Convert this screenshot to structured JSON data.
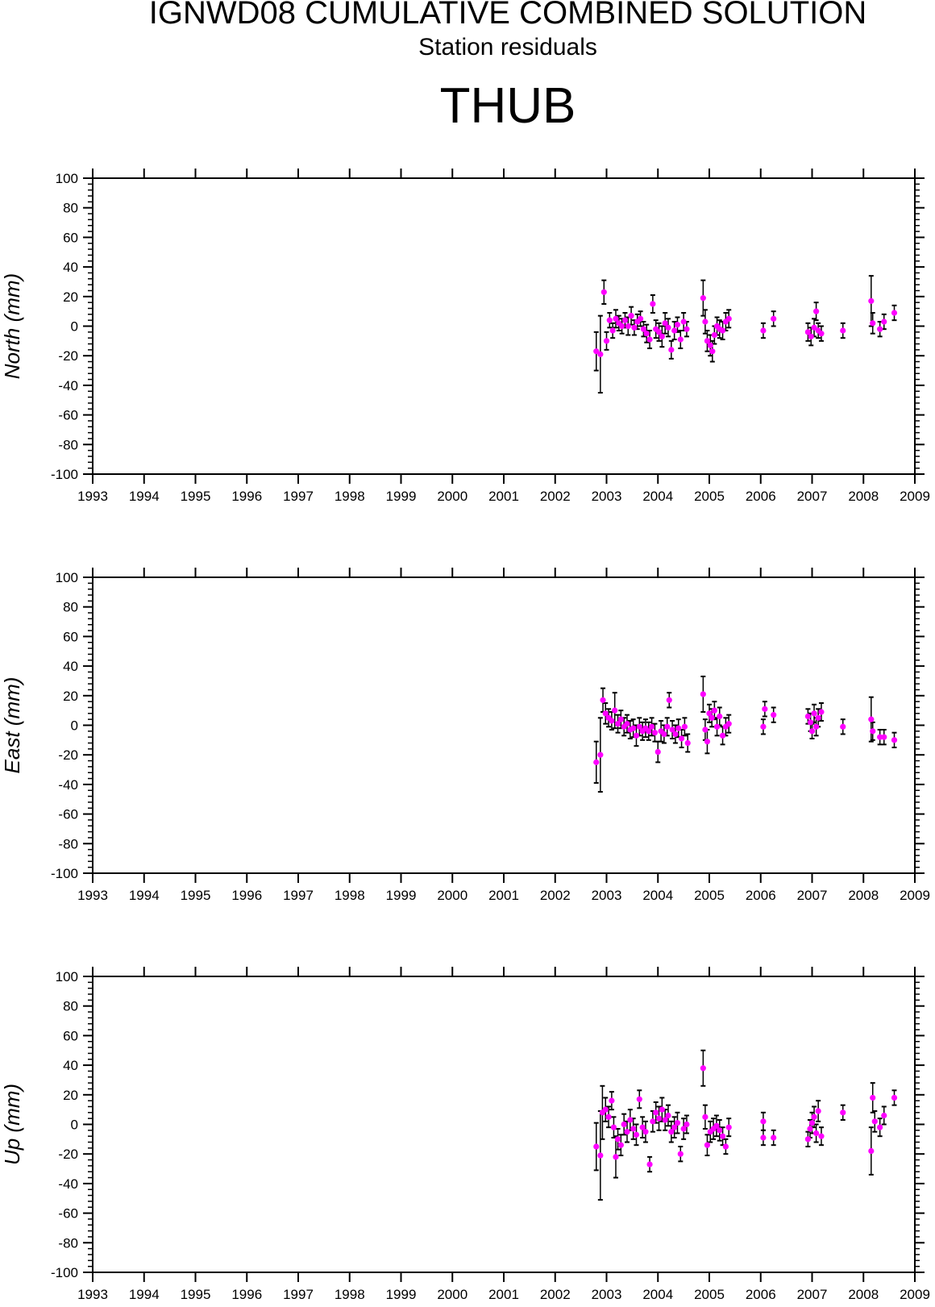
{
  "header": {
    "title": "IGNWD08 CUMULATIVE COMBINED SOLUTION",
    "subtitle": "Station residuals",
    "station": "THUB"
  },
  "colors": {
    "point": "#ff00ff",
    "errorbar": "#000000",
    "axis": "#000000"
  },
  "chart_data": [
    {
      "type": "scatter",
      "ylabel": "North (mm)",
      "xlim": [
        1993,
        2009
      ],
      "ylim": [
        -100,
        100
      ],
      "xticks": [
        "1993",
        "1994",
        "1995",
        "1996",
        "1997",
        "1998",
        "1999",
        "2000",
        "2001",
        "2002",
        "2003",
        "2004",
        "2005",
        "2006",
        "2007",
        "2008",
        "2009"
      ],
      "yticks": [
        "100",
        "80",
        "60",
        "40",
        "20",
        "0",
        "-20",
        "-40",
        "-60",
        "-80",
        "-100"
      ],
      "points": [
        {
          "x": 2002.8,
          "y": -17,
          "err": 13
        },
        {
          "x": 2002.88,
          "y": -19,
          "err": 26
        },
        {
          "x": 2002.95,
          "y": 23,
          "err": 8
        },
        {
          "x": 2003.0,
          "y": -10,
          "err": 6
        },
        {
          "x": 2003.06,
          "y": 4,
          "err": 5
        },
        {
          "x": 2003.12,
          "y": -3,
          "err": 5
        },
        {
          "x": 2003.18,
          "y": 5,
          "err": 6
        },
        {
          "x": 2003.24,
          "y": 2,
          "err": 5
        },
        {
          "x": 2003.3,
          "y": 0,
          "err": 5
        },
        {
          "x": 2003.36,
          "y": 4,
          "err": 5
        },
        {
          "x": 2003.42,
          "y": 0,
          "err": 6
        },
        {
          "x": 2003.48,
          "y": 7,
          "err": 6
        },
        {
          "x": 2003.54,
          "y": -1,
          "err": 5
        },
        {
          "x": 2003.6,
          "y": 3,
          "err": 5
        },
        {
          "x": 2003.66,
          "y": 5,
          "err": 5
        },
        {
          "x": 2003.72,
          "y": -2,
          "err": 5
        },
        {
          "x": 2003.78,
          "y": -5,
          "err": 6
        },
        {
          "x": 2003.84,
          "y": -9,
          "err": 6
        },
        {
          "x": 2003.9,
          "y": 15,
          "err": 6
        },
        {
          "x": 2003.96,
          "y": -2,
          "err": 6
        },
        {
          "x": 2004.02,
          "y": -4,
          "err": 6
        },
        {
          "x": 2004.08,
          "y": -7,
          "err": 7
        },
        {
          "x": 2004.14,
          "y": 2,
          "err": 7
        },
        {
          "x": 2004.2,
          "y": -1,
          "err": 6
        },
        {
          "x": 2004.26,
          "y": -16,
          "err": 6
        },
        {
          "x": 2004.32,
          "y": -3,
          "err": 6
        },
        {
          "x": 2004.38,
          "y": 1,
          "err": 5
        },
        {
          "x": 2004.44,
          "y": -9,
          "err": 6
        },
        {
          "x": 2004.5,
          "y": 3,
          "err": 6
        },
        {
          "x": 2004.56,
          "y": -2,
          "err": 5
        },
        {
          "x": 2004.88,
          "y": 19,
          "err": 12
        },
        {
          "x": 2004.92,
          "y": 3,
          "err": 8
        },
        {
          "x": 2004.96,
          "y": -10,
          "err": 7
        },
        {
          "x": 2005.02,
          "y": -13,
          "err": 7
        },
        {
          "x": 2005.06,
          "y": -17,
          "err": 7
        },
        {
          "x": 2005.1,
          "y": -6,
          "err": 6
        },
        {
          "x": 2005.15,
          "y": 0,
          "err": 6
        },
        {
          "x": 2005.2,
          "y": -2,
          "err": 6
        },
        {
          "x": 2005.26,
          "y": -3,
          "err": 6
        },
        {
          "x": 2005.32,
          "y": 3,
          "err": 6
        },
        {
          "x": 2005.38,
          "y": 5,
          "err": 6
        },
        {
          "x": 2006.05,
          "y": -3,
          "err": 5
        },
        {
          "x": 2006.25,
          "y": 5,
          "err": 5
        },
        {
          "x": 2006.92,
          "y": -4,
          "err": 6
        },
        {
          "x": 2006.98,
          "y": -7,
          "err": 6
        },
        {
          "x": 2007.04,
          "y": -1,
          "err": 6
        },
        {
          "x": 2007.08,
          "y": 10,
          "err": 6
        },
        {
          "x": 2007.12,
          "y": -3,
          "err": 5
        },
        {
          "x": 2007.18,
          "y": -5,
          "err": 5
        },
        {
          "x": 2007.6,
          "y": -3,
          "err": 5
        },
        {
          "x": 2008.15,
          "y": 17,
          "err": 17
        },
        {
          "x": 2008.18,
          "y": 2,
          "err": 7
        },
        {
          "x": 2008.32,
          "y": -2,
          "err": 5
        },
        {
          "x": 2008.4,
          "y": 3,
          "err": 5
        },
        {
          "x": 2008.6,
          "y": 9,
          "err": 5
        }
      ]
    },
    {
      "type": "scatter",
      "ylabel": "East (mm)",
      "xlim": [
        1993,
        2009
      ],
      "ylim": [
        -100,
        100
      ],
      "xticks": [
        "1993",
        "1994",
        "1995",
        "1996",
        "1997",
        "1998",
        "1999",
        "2000",
        "2001",
        "2002",
        "2003",
        "2004",
        "2005",
        "2006",
        "2007",
        "2008",
        "2009"
      ],
      "yticks": [
        "100",
        "80",
        "60",
        "40",
        "20",
        "0",
        "-20",
        "-40",
        "-60",
        "-80",
        "-100"
      ],
      "points": [
        {
          "x": 2002.8,
          "y": -25,
          "err": 14
        },
        {
          "x": 2002.88,
          "y": -20,
          "err": 25
        },
        {
          "x": 2002.93,
          "y": 17,
          "err": 8
        },
        {
          "x": 2002.98,
          "y": 8,
          "err": 7
        },
        {
          "x": 2003.04,
          "y": 5,
          "err": 6
        },
        {
          "x": 2003.1,
          "y": 3,
          "err": 6
        },
        {
          "x": 2003.16,
          "y": 10,
          "err": 12
        },
        {
          "x": 2003.22,
          "y": 1,
          "err": 6
        },
        {
          "x": 2003.28,
          "y": 4,
          "err": 6
        },
        {
          "x": 2003.34,
          "y": -1,
          "err": 6
        },
        {
          "x": 2003.4,
          "y": 1,
          "err": 6
        },
        {
          "x": 2003.46,
          "y": -3,
          "err": 6
        },
        {
          "x": 2003.52,
          "y": -2,
          "err": 6
        },
        {
          "x": 2003.58,
          "y": -7,
          "err": 7
        },
        {
          "x": 2003.64,
          "y": -1,
          "err": 6
        },
        {
          "x": 2003.7,
          "y": -4,
          "err": 6
        },
        {
          "x": 2003.76,
          "y": -2,
          "err": 6
        },
        {
          "x": 2003.82,
          "y": -4,
          "err": 6
        },
        {
          "x": 2003.88,
          "y": -1,
          "err": 6
        },
        {
          "x": 2003.94,
          "y": -5,
          "err": 6
        },
        {
          "x": 2004.0,
          "y": -18,
          "err": 7
        },
        {
          "x": 2004.06,
          "y": -4,
          "err": 7
        },
        {
          "x": 2004.12,
          "y": -6,
          "err": 6
        },
        {
          "x": 2004.18,
          "y": -1,
          "err": 6
        },
        {
          "x": 2004.22,
          "y": 17,
          "err": 5
        },
        {
          "x": 2004.28,
          "y": -3,
          "err": 6
        },
        {
          "x": 2004.34,
          "y": -6,
          "err": 6
        },
        {
          "x": 2004.4,
          "y": -2,
          "err": 6
        },
        {
          "x": 2004.46,
          "y": -9,
          "err": 6
        },
        {
          "x": 2004.52,
          "y": -1,
          "err": 6
        },
        {
          "x": 2004.58,
          "y": -12,
          "err": 6
        },
        {
          "x": 2004.88,
          "y": 21,
          "err": 12
        },
        {
          "x": 2004.92,
          "y": -3,
          "err": 7
        },
        {
          "x": 2004.96,
          "y": -11,
          "err": 8
        },
        {
          "x": 2005.0,
          "y": 8,
          "err": 6
        },
        {
          "x": 2005.05,
          "y": 5,
          "err": 6
        },
        {
          "x": 2005.1,
          "y": 10,
          "err": 6
        },
        {
          "x": 2005.15,
          "y": -1,
          "err": 6
        },
        {
          "x": 2005.2,
          "y": 6,
          "err": 6
        },
        {
          "x": 2005.26,
          "y": -7,
          "err": 6
        },
        {
          "x": 2005.32,
          "y": -1,
          "err": 6
        },
        {
          "x": 2005.38,
          "y": 1,
          "err": 6
        },
        {
          "x": 2006.05,
          "y": -1,
          "err": 5
        },
        {
          "x": 2006.08,
          "y": 11,
          "err": 5
        },
        {
          "x": 2006.25,
          "y": 7,
          "err": 5
        },
        {
          "x": 2006.92,
          "y": 6,
          "err": 5
        },
        {
          "x": 2006.97,
          "y": 2,
          "err": 6
        },
        {
          "x": 2007.0,
          "y": -4,
          "err": 5
        },
        {
          "x": 2007.04,
          "y": 8,
          "err": 6
        },
        {
          "x": 2007.08,
          "y": -1,
          "err": 6
        },
        {
          "x": 2007.12,
          "y": 5,
          "err": 6
        },
        {
          "x": 2007.18,
          "y": 9,
          "err": 6
        },
        {
          "x": 2007.6,
          "y": -1,
          "err": 5
        },
        {
          "x": 2008.15,
          "y": 4,
          "err": 15
        },
        {
          "x": 2008.18,
          "y": -4,
          "err": 6
        },
        {
          "x": 2008.32,
          "y": -8,
          "err": 5
        },
        {
          "x": 2008.4,
          "y": -8,
          "err": 5
        },
        {
          "x": 2008.6,
          "y": -10,
          "err": 5
        }
      ]
    },
    {
      "type": "scatter",
      "ylabel": "Up (mm)",
      "xlim": [
        1993,
        2009
      ],
      "ylim": [
        -100,
        100
      ],
      "xticks": [
        "1993",
        "1994",
        "1995",
        "1996",
        "1997",
        "1998",
        "1999",
        "2000",
        "2001",
        "2002",
        "2003",
        "2004",
        "2005",
        "2006",
        "2007",
        "2008",
        "2009"
      ],
      "yticks": [
        "100",
        "80",
        "60",
        "40",
        "20",
        "0",
        "-20",
        "-40",
        "-60",
        "-80",
        "-100"
      ],
      "points": [
        {
          "x": 2002.8,
          "y": -15,
          "err": 16
        },
        {
          "x": 2002.88,
          "y": -21,
          "err": 30
        },
        {
          "x": 2002.92,
          "y": 8,
          "err": 18
        },
        {
          "x": 2002.98,
          "y": 10,
          "err": 8
        },
        {
          "x": 2003.04,
          "y": 5,
          "err": 7
        },
        {
          "x": 2003.1,
          "y": 16,
          "err": 6
        },
        {
          "x": 2003.14,
          "y": -2,
          "err": 7
        },
        {
          "x": 2003.18,
          "y": -22,
          "err": 14
        },
        {
          "x": 2003.22,
          "y": -10,
          "err": 7
        },
        {
          "x": 2003.28,
          "y": -14,
          "err": 7
        },
        {
          "x": 2003.34,
          "y": 0,
          "err": 7
        },
        {
          "x": 2003.4,
          "y": -5,
          "err": 7
        },
        {
          "x": 2003.46,
          "y": 3,
          "err": 7
        },
        {
          "x": 2003.52,
          "y": -3,
          "err": 7
        },
        {
          "x": 2003.58,
          "y": -7,
          "err": 7
        },
        {
          "x": 2003.64,
          "y": 17,
          "err": 6
        },
        {
          "x": 2003.7,
          "y": -2,
          "err": 7
        },
        {
          "x": 2003.76,
          "y": -5,
          "err": 7
        },
        {
          "x": 2003.84,
          "y": -27,
          "err": 5
        },
        {
          "x": 2003.9,
          "y": 2,
          "err": 7
        },
        {
          "x": 2003.96,
          "y": 8,
          "err": 7
        },
        {
          "x": 2004.02,
          "y": 4,
          "err": 8
        },
        {
          "x": 2004.08,
          "y": 10,
          "err": 8
        },
        {
          "x": 2004.14,
          "y": 3,
          "err": 7
        },
        {
          "x": 2004.2,
          "y": 6,
          "err": 7
        },
        {
          "x": 2004.26,
          "y": -5,
          "err": 7
        },
        {
          "x": 2004.32,
          "y": -2,
          "err": 7
        },
        {
          "x": 2004.38,
          "y": 1,
          "err": 7
        },
        {
          "x": 2004.44,
          "y": -20,
          "err": 5
        },
        {
          "x": 2004.5,
          "y": -3,
          "err": 7
        },
        {
          "x": 2004.56,
          "y": 0,
          "err": 6
        },
        {
          "x": 2004.88,
          "y": 38,
          "err": 12
        },
        {
          "x": 2004.92,
          "y": 5,
          "err": 8
        },
        {
          "x": 2004.96,
          "y": -14,
          "err": 7
        },
        {
          "x": 2005.02,
          "y": -5,
          "err": 7
        },
        {
          "x": 2005.08,
          "y": -3,
          "err": 7
        },
        {
          "x": 2005.14,
          "y": -1,
          "err": 7
        },
        {
          "x": 2005.2,
          "y": -4,
          "err": 7
        },
        {
          "x": 2005.26,
          "y": -8,
          "err": 6
        },
        {
          "x": 2005.32,
          "y": -15,
          "err": 5
        },
        {
          "x": 2005.38,
          "y": -2,
          "err": 6
        },
        {
          "x": 2006.05,
          "y": 2,
          "err": 6
        },
        {
          "x": 2006.05,
          "y": -9,
          "err": 5
        },
        {
          "x": 2006.25,
          "y": -9,
          "err": 5
        },
        {
          "x": 2006.92,
          "y": -10,
          "err": 5
        },
        {
          "x": 2006.96,
          "y": -3,
          "err": 6
        },
        {
          "x": 2007.0,
          "y": 1,
          "err": 7
        },
        {
          "x": 2007.04,
          "y": 5,
          "err": 7
        },
        {
          "x": 2007.08,
          "y": -6,
          "err": 6
        },
        {
          "x": 2007.12,
          "y": 9,
          "err": 7
        },
        {
          "x": 2007.18,
          "y": -8,
          "err": 6
        },
        {
          "x": 2007.6,
          "y": 8,
          "err": 5
        },
        {
          "x": 2008.15,
          "y": -18,
          "err": 16
        },
        {
          "x": 2008.18,
          "y": 18,
          "err": 10
        },
        {
          "x": 2008.22,
          "y": 2,
          "err": 7
        },
        {
          "x": 2008.32,
          "y": -2,
          "err": 6
        },
        {
          "x": 2008.4,
          "y": 6,
          "err": 6
        },
        {
          "x": 2008.6,
          "y": 18,
          "err": 5
        }
      ]
    }
  ]
}
